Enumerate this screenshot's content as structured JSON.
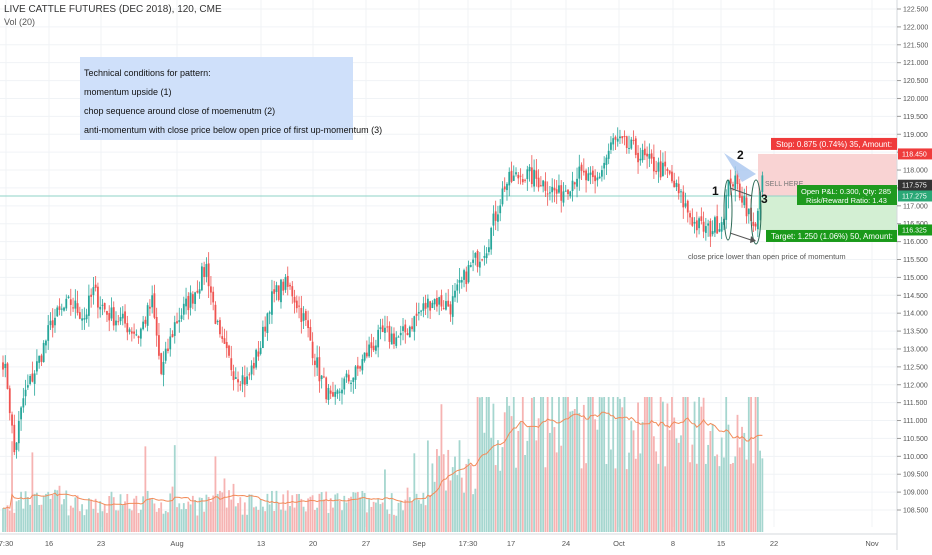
{
  "header": {
    "title": "LIVE CATTLE FUTURES (DEC 2018), 120, CME",
    "volume_label": "Vol (20)"
  },
  "notes": {
    "heading": "Technical conditions for pattern:",
    "line1": "momentum upside (1)",
    "line2": "chop sequence around close of moemenutm (2)",
    "line3": "anti-momentum with close price below open price of first up-momentum (3)"
  },
  "annotations": {
    "sell_here": "SELL HERE",
    "close_note": "close price lower than open price of momentum",
    "marker1": "1",
    "marker2": "2",
    "marker3": "3"
  },
  "trade": {
    "stop_label": "Stop: 0.875 (0.74%) 35, Amount:",
    "pnl_label": "Open P&L: 0.300, Qty: 285",
    "rr_label": "Risk/Reward Ratio: 1.43",
    "target_label": "Target: 1.250 (1.06%) 50, Amount:",
    "stop_price": "118.450",
    "current_price": "117.575",
    "entry_price": "117.275",
    "target_price": "116.325",
    "stop_value": 118.45,
    "current_value": 117.575,
    "entry_value": 117.275,
    "target_value": 116.325
  },
  "colors": {
    "up": "#26a69a",
    "down": "#ef5350",
    "vol_up": "#a5d6cf",
    "vol_down": "#f6b3b2",
    "ma": "#f28b59",
    "stop_zone": "#f9d3d3",
    "target_zone": "#d3efd3",
    "note_bg": "#cfe0fa"
  },
  "chart_data": {
    "type": "candlestick",
    "title": "LIVE CATTLE FUTURES (DEC 2018), 120, CME",
    "ylim": [
      108.5,
      122.5
    ],
    "y_ticks": [
      "122.500",
      "122.000",
      "121.500",
      "121.000",
      "120.500",
      "120.000",
      "119.500",
      "119.000",
      "118.500",
      "118.000",
      "117.500",
      "117.000",
      "116.500",
      "116.000",
      "115.500",
      "115.000",
      "114.500",
      "114.000",
      "113.500",
      "113.000",
      "112.500",
      "112.000",
      "111.500",
      "111.000",
      "110.500",
      "110.000",
      "109.500",
      "109.000",
      "108.500"
    ],
    "x_ticks": [
      "7:30",
      "16",
      "23",
      "Aug",
      "13",
      "20",
      "27",
      "Sep",
      "17:30",
      "17",
      "24",
      "Oct",
      "8",
      "15",
      "22",
      "Nov"
    ],
    "grid": true,
    "anchors": [
      {
        "t": 0,
        "price": 112.7
      },
      {
        "t": 2,
        "price": 112.0
      },
      {
        "t": 5,
        "price": 110.1
      },
      {
        "t": 9,
        "price": 111.6
      },
      {
        "t": 16,
        "price": 112.7
      },
      {
        "t": 22,
        "price": 113.8
      },
      {
        "t": 30,
        "price": 114.3
      },
      {
        "t": 36,
        "price": 113.9
      },
      {
        "t": 40,
        "price": 114.6
      },
      {
        "t": 46,
        "price": 114.0
      },
      {
        "t": 52,
        "price": 113.8
      },
      {
        "t": 60,
        "price": 113.4
      },
      {
        "t": 66,
        "price": 114.3
      },
      {
        "t": 70,
        "price": 112.3
      },
      {
        "t": 76,
        "price": 113.7
      },
      {
        "t": 84,
        "price": 114.5
      },
      {
        "t": 90,
        "price": 115.3
      },
      {
        "t": 96,
        "price": 113.2
      },
      {
        "t": 102,
        "price": 112.4
      },
      {
        "t": 108,
        "price": 112.1
      },
      {
        "t": 114,
        "price": 113.1
      },
      {
        "t": 118,
        "price": 114.3
      },
      {
        "t": 124,
        "price": 114.8
      },
      {
        "t": 128,
        "price": 114.6
      },
      {
        "t": 134,
        "price": 113.7
      },
      {
        "t": 140,
        "price": 112.3
      },
      {
        "t": 146,
        "price": 111.4
      },
      {
        "t": 150,
        "price": 112.0
      },
      {
        "t": 156,
        "price": 112.3
      },
      {
        "t": 162,
        "price": 113.0
      },
      {
        "t": 168,
        "price": 113.4
      },
      {
        "t": 176,
        "price": 113.3
      },
      {
        "t": 184,
        "price": 114.0
      },
      {
        "t": 190,
        "price": 114.4
      },
      {
        "t": 198,
        "price": 114.2
      },
      {
        "t": 206,
        "price": 115.2
      },
      {
        "t": 214,
        "price": 115.9
      },
      {
        "t": 222,
        "price": 117.6
      },
      {
        "t": 230,
        "price": 117.9
      },
      {
        "t": 238,
        "price": 117.7
      },
      {
        "t": 246,
        "price": 117.3
      },
      {
        "t": 254,
        "price": 117.9
      },
      {
        "t": 262,
        "price": 117.6
      },
      {
        "t": 270,
        "price": 118.8
      },
      {
        "t": 278,
        "price": 118.6
      },
      {
        "t": 286,
        "price": 118.2
      },
      {
        "t": 294,
        "price": 117.9
      },
      {
        "t": 300,
        "price": 117.2
      },
      {
        "t": 306,
        "price": 116.5
      },
      {
        "t": 312,
        "price": 116.3
      },
      {
        "t": 318,
        "price": 116.6
      },
      {
        "t": 322,
        "price": 117.8
      },
      {
        "t": 328,
        "price": 117.2
      },
      {
        "t": 332,
        "price": 116.3
      },
      {
        "t": 336,
        "price": 117.6
      }
    ]
  }
}
